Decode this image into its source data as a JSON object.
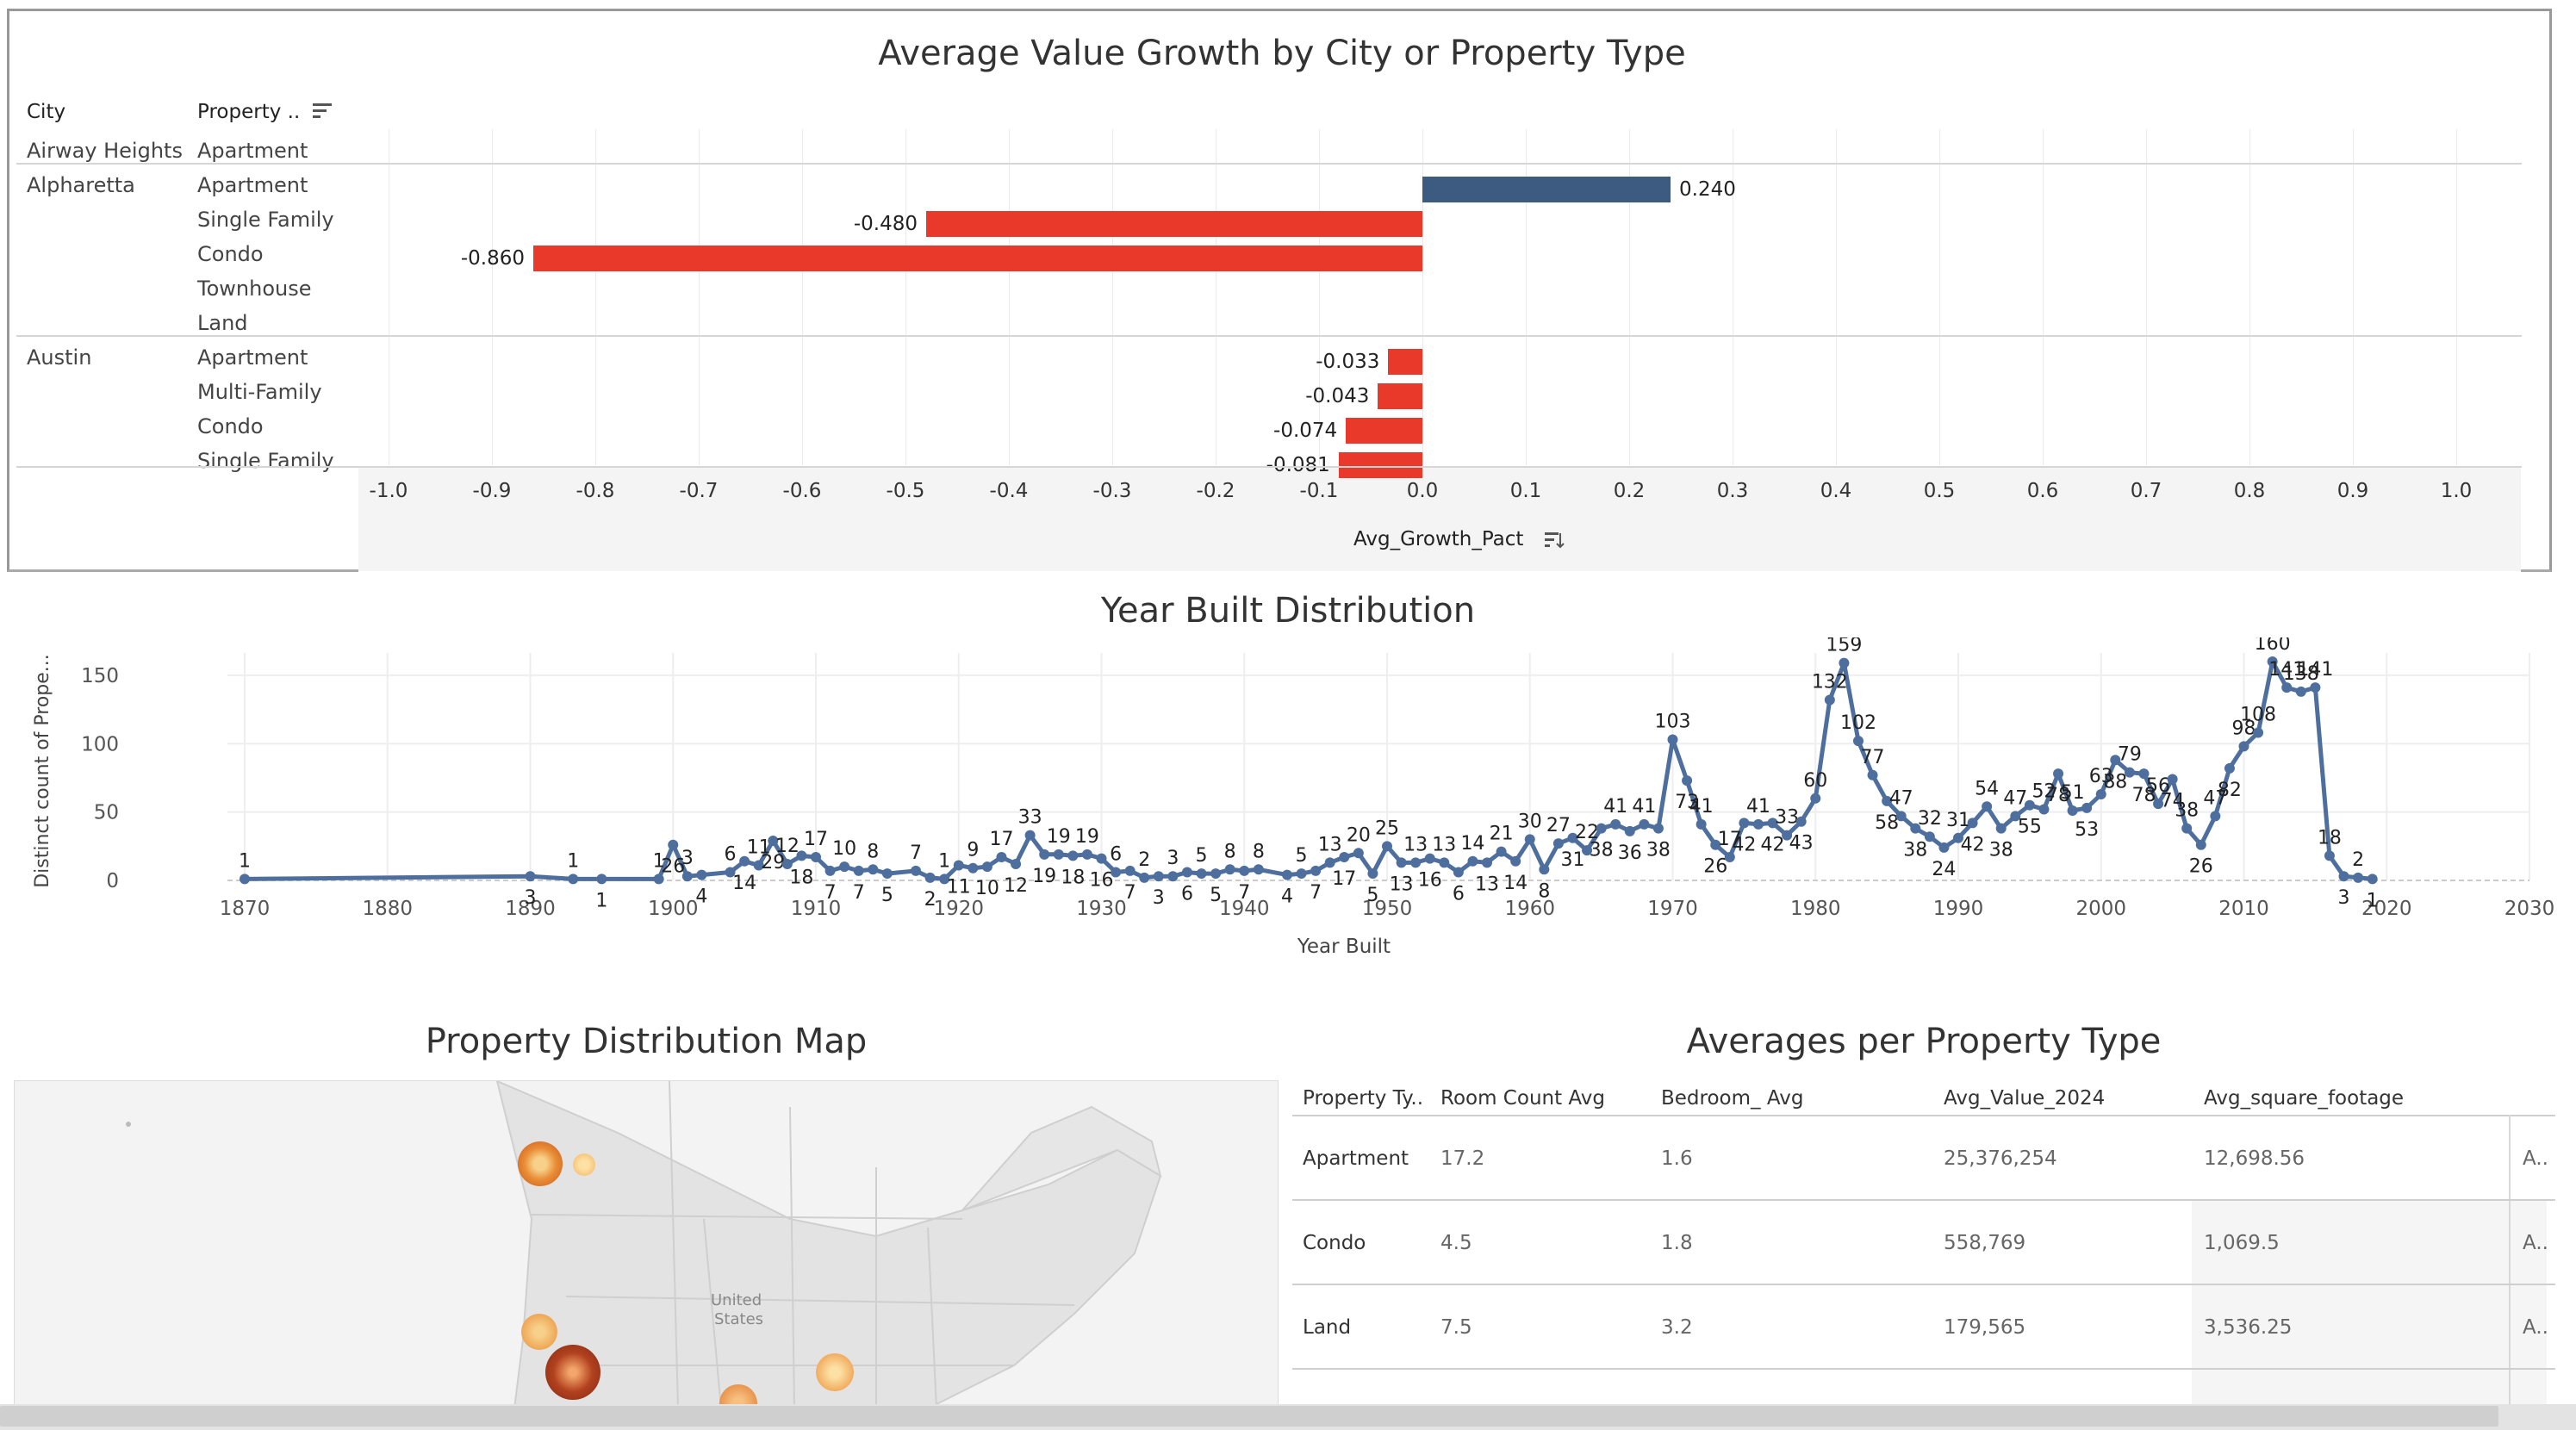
{
  "growth": {
    "title": "Average Value Growth by City or Property Type",
    "col_city": "City",
    "col_property": "Property ..",
    "axis_label": "Avg_Growth_Pact",
    "sort_icon": "sort-descending-icon",
    "pos_color": "#3d5a80",
    "neg_color": "#e8392a",
    "ticks": [
      "-1.0",
      "-0.9",
      "-0.8",
      "-0.7",
      "-0.6",
      "-0.5",
      "-0.4",
      "-0.3",
      "-0.2",
      "-0.1",
      "0.0",
      "0.1",
      "0.2",
      "0.3",
      "0.4",
      "0.5",
      "0.6",
      "0.7",
      "0.8",
      "0.9",
      "1.0"
    ],
    "rows": [
      {
        "city": "Airway Heights",
        "type": "Apartment",
        "value": null,
        "label": ""
      },
      {
        "city": "Alpharetta",
        "type": "Apartment",
        "value": 0.24,
        "label": "0.240"
      },
      {
        "city": "",
        "type": "Single Family",
        "value": -0.48,
        "label": "-0.480"
      },
      {
        "city": "",
        "type": "Condo",
        "value": -0.86,
        "label": "-0.860"
      },
      {
        "city": "",
        "type": "Townhouse",
        "value": null,
        "label": ""
      },
      {
        "city": "",
        "type": "Land",
        "value": null,
        "label": ""
      },
      {
        "city": "Austin",
        "type": "Apartment",
        "value": -0.033,
        "label": "-0.033"
      },
      {
        "city": "",
        "type": "Multi-Family",
        "value": -0.043,
        "label": "-0.043"
      },
      {
        "city": "",
        "type": "Condo",
        "value": -0.074,
        "label": "-0.074"
      },
      {
        "city": "",
        "type": "Single Family",
        "value": -0.081,
        "label": "-0.081"
      }
    ]
  },
  "year_built": {
    "title": "Year Built Distribution",
    "xlabel": "Year Built",
    "ylabel": "Distinct count of Prope..."
  },
  "chart_data": {
    "type": "line",
    "title": "Year Built Distribution",
    "xlabel": "Year Built",
    "ylabel": "Distinct count of Prope...",
    "xlim": [
      1870,
      2030
    ],
    "ylim": [
      0,
      160
    ],
    "x_ticks": [
      "1870",
      "1880",
      "1890",
      "1900",
      "1910",
      "1920",
      "1930",
      "1940",
      "1950",
      "1960",
      "1970",
      "1980",
      "1990",
      "2000",
      "2010",
      "2020",
      "2030"
    ],
    "y_ticks": [
      "0",
      "50",
      "100",
      "150"
    ],
    "color": "#4e6f9e",
    "points": [
      [
        1870,
        1
      ],
      [
        1890,
        3
      ],
      [
        1893,
        1
      ],
      [
        1895,
        1
      ],
      [
        1899,
        1
      ],
      [
        1900,
        26
      ],
      [
        1901,
        3
      ],
      [
        1902,
        4
      ],
      [
        1904,
        6
      ],
      [
        1905,
        14
      ],
      [
        1906,
        11
      ],
      [
        1907,
        29
      ],
      [
        1908,
        12
      ],
      [
        1909,
        18
      ],
      [
        1910,
        17
      ],
      [
        1911,
        7
      ],
      [
        1912,
        10
      ],
      [
        1913,
        7
      ],
      [
        1914,
        8
      ],
      [
        1915,
        5
      ],
      [
        1917,
        7
      ],
      [
        1918,
        2
      ],
      [
        1919,
        1
      ],
      [
        1920,
        11
      ],
      [
        1921,
        9
      ],
      [
        1922,
        10
      ],
      [
        1923,
        17
      ],
      [
        1924,
        12
      ],
      [
        1925,
        33
      ],
      [
        1926,
        19
      ],
      [
        1927,
        19
      ],
      [
        1928,
        18
      ],
      [
        1929,
        19
      ],
      [
        1930,
        16
      ],
      [
        1931,
        6
      ],
      [
        1932,
        7
      ],
      [
        1933,
        2
      ],
      [
        1934,
        3
      ],
      [
        1935,
        3
      ],
      [
        1936,
        6
      ],
      [
        1937,
        5
      ],
      [
        1938,
        5
      ],
      [
        1939,
        8
      ],
      [
        1940,
        7
      ],
      [
        1941,
        8
      ],
      [
        1943,
        4
      ],
      [
        1944,
        5
      ],
      [
        1945,
        7
      ],
      [
        1946,
        13
      ],
      [
        1947,
        17
      ],
      [
        1948,
        20
      ],
      [
        1949,
        5
      ],
      [
        1950,
        25
      ],
      [
        1951,
        13
      ],
      [
        1952,
        13
      ],
      [
        1953,
        16
      ],
      [
        1954,
        13
      ],
      [
        1955,
        6
      ],
      [
        1956,
        14
      ],
      [
        1957,
        13
      ],
      [
        1958,
        21
      ],
      [
        1959,
        14
      ],
      [
        1960,
        30
      ],
      [
        1961,
        8
      ],
      [
        1962,
        27
      ],
      [
        1963,
        31
      ],
      [
        1964,
        22
      ],
      [
        1965,
        38
      ],
      [
        1966,
        41
      ],
      [
        1967,
        36
      ],
      [
        1968,
        41
      ],
      [
        1969,
        38
      ],
      [
        1970,
        103
      ],
      [
        1971,
        73
      ],
      [
        1972,
        41
      ],
      [
        1973,
        26
      ],
      [
        1974,
        17
      ],
      [
        1975,
        42
      ],
      [
        1976,
        41
      ],
      [
        1977,
        42
      ],
      [
        1978,
        33
      ],
      [
        1979,
        43
      ],
      [
        1980,
        60
      ],
      [
        1981,
        132
      ],
      [
        1982,
        159
      ],
      [
        1983,
        102
      ],
      [
        1984,
        77
      ],
      [
        1985,
        58
      ],
      [
        1986,
        47
      ],
      [
        1987,
        38
      ],
      [
        1988,
        32
      ],
      [
        1989,
        24
      ],
      [
        1990,
        31
      ],
      [
        1991,
        42
      ],
      [
        1992,
        54
      ],
      [
        1993,
        38
      ],
      [
        1994,
        47
      ],
      [
        1995,
        55
      ],
      [
        1996,
        52
      ],
      [
        1997,
        78
      ],
      [
        1998,
        51
      ],
      [
        1999,
        53
      ],
      [
        2000,
        63
      ],
      [
        2001,
        88
      ],
      [
        2002,
        79
      ],
      [
        2003,
        78
      ],
      [
        2004,
        56
      ],
      [
        2005,
        74
      ],
      [
        2006,
        38
      ],
      [
        2007,
        26
      ],
      [
        2008,
        47
      ],
      [
        2009,
        82
      ],
      [
        2010,
        98
      ],
      [
        2011,
        108
      ],
      [
        2012,
        160
      ],
      [
        2013,
        141
      ],
      [
        2014,
        138
      ],
      [
        2015,
        141
      ],
      [
        2016,
        18
      ],
      [
        2017,
        3
      ],
      [
        2018,
        2
      ],
      [
        2019,
        1
      ]
    ]
  },
  "map": {
    "title": "Property Distribution Map",
    "country_label_1": "United",
    "country_label_2": "States"
  },
  "averages": {
    "title": "Averages per Property Type",
    "columns": [
      "Property Ty..",
      "Room Count Avg",
      "Bedroom_ Avg",
      "Avg_Value_2024",
      "Avg_square_footage"
    ],
    "trailing_col": "A..",
    "rows": [
      [
        "Apartment",
        "17.2",
        "1.6",
        "25,376,254",
        "12,698.56"
      ],
      [
        "Condo",
        "4.5",
        "1.8",
        "558,769",
        "1,069.5"
      ],
      [
        "Land",
        "7.5",
        "3.2",
        "179,565",
        "3,536.25"
      ]
    ]
  }
}
